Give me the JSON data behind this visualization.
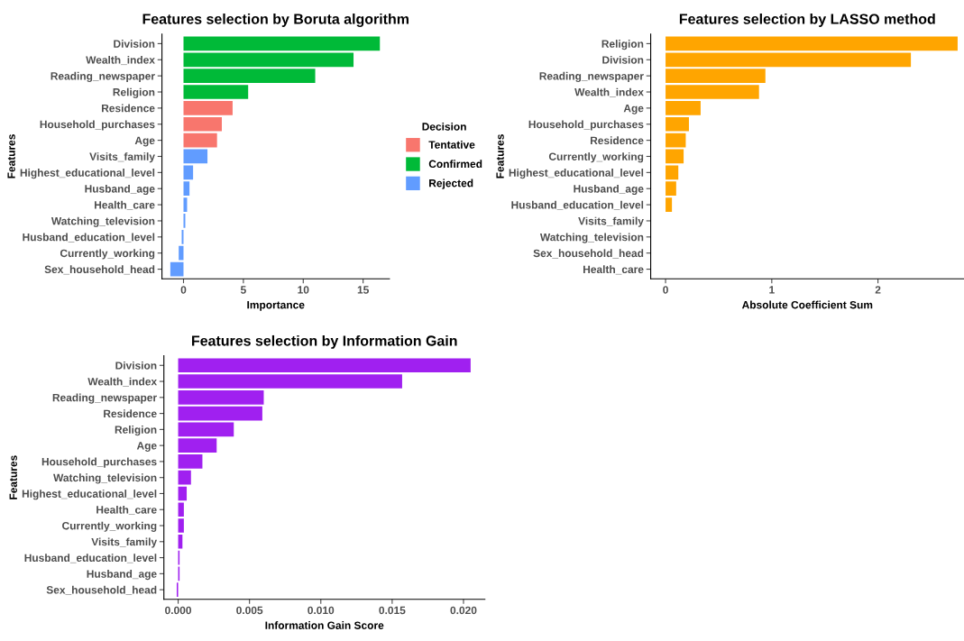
{
  "chart_data": [
    {
      "type": "bar",
      "orientation": "horizontal",
      "title": "Features selection by Boruta algorithm",
      "xlabel": "Importance",
      "ylabel": "Features",
      "legend_title": "Decision",
      "legend": "right",
      "grid": false,
      "categories": [
        "Division",
        "Wealth_index",
        "Reading_newspaper",
        "Religion",
        "Residence",
        "Household_purchases",
        "Age",
        "Visits_family",
        "Highest_educational_level",
        "Husband_age",
        "Health_care",
        "Watching_television",
        "Husband_education_level",
        "Currently_working",
        "Sex_household_head"
      ],
      "series": [
        {
          "name": "Tentative",
          "color": "#f8766d",
          "values": [
            null,
            null,
            null,
            null,
            4.1,
            3.2,
            2.8,
            null,
            null,
            null,
            null,
            null,
            null,
            null,
            null
          ]
        },
        {
          "name": "Confirmed",
          "color": "#00ba38",
          "values": [
            16.4,
            14.2,
            11.0,
            5.4,
            null,
            null,
            null,
            null,
            null,
            null,
            null,
            null,
            null,
            null,
            null
          ]
        },
        {
          "name": "Rejected",
          "color": "#619cff",
          "values": [
            null,
            null,
            null,
            null,
            null,
            null,
            null,
            2.0,
            0.8,
            0.5,
            0.3,
            0.15,
            -0.15,
            -0.4,
            -1.1
          ]
        }
      ],
      "xlim": [
        -1.8,
        17.2
      ],
      "xticks": [
        0,
        5,
        10,
        15
      ]
    },
    {
      "type": "bar",
      "orientation": "horizontal",
      "title": "Features selection by LASSO method",
      "xlabel": "Absolute Coefficient Sum",
      "ylabel": "Features",
      "grid": false,
      "categories": [
        "Religion",
        "Division",
        "Reading_newspaper",
        "Wealth_index",
        "Age",
        "Household_purchases",
        "Residence",
        "Currently_working",
        "Highest_educational_level",
        "Husband_age",
        "Husband_education_level",
        "Visits_family",
        "Watching_television",
        "Sex_household_head",
        "Health_care"
      ],
      "series": [
        {
          "color": "#ffa500",
          "values": [
            2.75,
            2.31,
            0.94,
            0.88,
            0.33,
            0.22,
            0.19,
            0.17,
            0.12,
            0.1,
            0.06,
            0,
            0,
            0,
            0
          ]
        }
      ],
      "xlim": [
        -0.14,
        2.81
      ],
      "xticks": [
        0,
        1,
        2
      ]
    },
    {
      "type": "bar",
      "orientation": "horizontal",
      "title": "Features selection by Information Gain",
      "xlabel": "Information Gain Score",
      "ylabel": "Features",
      "grid": false,
      "categories": [
        "Division",
        "Wealth_index",
        "Reading_newspaper",
        "Residence",
        "Religion",
        "Age",
        "Household_purchases",
        "Watching_television",
        "Highest_educational_level",
        "Health_care",
        "Currently_working",
        "Visits_family",
        "Husband_education_level",
        "Husband_age",
        "Sex_household_head"
      ],
      "series": [
        {
          "color": "#a020f0",
          "values": [
            0.0205,
            0.0157,
            0.006,
            0.0059,
            0.0039,
            0.0027,
            0.0017,
            0.0009,
            0.0006,
            0.0004,
            0.0004,
            0.0003,
            0.0001,
            0.0001,
            -0.0001
          ]
        }
      ],
      "xlim": [
        -0.001,
        0.0215
      ],
      "xticks": [
        {
          "value": 0,
          "label": "0.000"
        },
        {
          "value": 0.005,
          "label": "0.005"
        },
        {
          "value": 0.01,
          "label": "0.010"
        },
        {
          "value": 0.015,
          "label": "0.015"
        },
        {
          "value": 0.02,
          "label": "0.020"
        }
      ]
    }
  ]
}
